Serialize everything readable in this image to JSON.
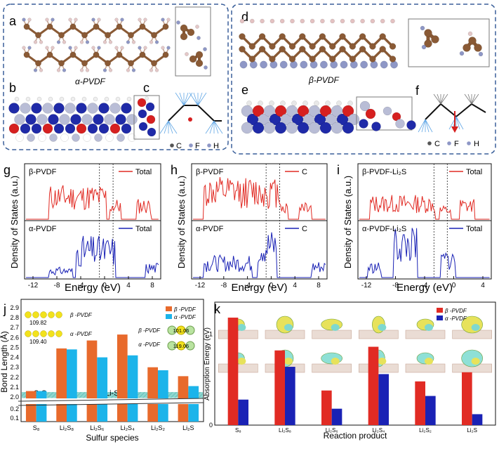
{
  "panels": {
    "a": "a",
    "b": "b",
    "c": "c",
    "d": "d",
    "e": "e",
    "f": "f",
    "g": "g",
    "h": "h",
    "i": "i",
    "j": "j",
    "k": "k"
  },
  "structures": {
    "alpha_label": "α-PVDF",
    "beta_label": "β-PVDF",
    "legend_c": "C",
    "legend_f": "F",
    "legend_h": "H"
  },
  "colors": {
    "carbon": "#8a5a35",
    "fluorine": "#8e97c6",
    "hydrogen": "#e4c8c8",
    "red_atom": "#d62020",
    "blue_atom": "#1f2aa8",
    "grey_atom": "#b9bdd6",
    "beta": "#e12b24",
    "alpha": "#1a22b5",
    "cyan": "#1cb4ea",
    "dashed_box": "#3a5f9a"
  },
  "dos": [
    {
      "panel": "g",
      "top_label": "β-PVDF",
      "top_legend": "Total",
      "bottom_label": "α-PVDF",
      "bottom_legend": "Total",
      "xlabel": "Energy (eV)",
      "ylabel": "Density of States (a.u.)",
      "xticks": [
        "-12",
        "-8",
        "-4",
        "0",
        "4",
        "8"
      ]
    },
    {
      "panel": "h",
      "top_label": "β-PVDF",
      "top_legend": "C",
      "bottom_label": "α-PVDF",
      "bottom_legend": "C",
      "xlabel": "Energy (eV)",
      "ylabel": "Density of States (a.u.)",
      "xticks": [
        "-12",
        "-8",
        "-4",
        "0",
        "4",
        "8"
      ]
    },
    {
      "panel": "i",
      "top_label": "β-PVDF-Li₂S",
      "top_legend": "Total",
      "bottom_label": "α-PVDF-Li₂S",
      "bottom_legend": "Total",
      "xlabel": "Energy (eV)",
      "ylabel": "Density of States (a.u.)",
      "xticks": [
        "-12",
        "-8",
        "-4",
        "0",
        "4"
      ]
    }
  ],
  "chart_data": [
    {
      "type": "bar",
      "panel": "j",
      "categories": [
        "S₈",
        "Li₂S₈",
        "Li₂S₆",
        "Li₂S₄",
        "Li₂S₂",
        "Li₂S"
      ],
      "xlabel": "Sulfur species",
      "ylabel": "Bond Length (Å)",
      "yticks": [
        "0.1",
        "0.2",
        "2.0",
        "2.1",
        "2.2",
        "2.3",
        "2.4",
        "2.5",
        "2.6",
        "2.7",
        "2.8",
        "2.9"
      ],
      "series": [
        {
          "name": "β -PVDF",
          "values": [
            2.06,
            2.49,
            2.57,
            2.63,
            2.3,
            2.21
          ]
        },
        {
          "name": "α -PVDF",
          "values": [
            2.06,
            2.48,
            2.4,
            2.42,
            2.27,
            2.11
          ]
        }
      ],
      "annotations": {
        "band_ss": "S-S",
        "band_lis": "Li-S",
        "beta_angle": "109.82",
        "alpha_angle": "109.40",
        "inset_beta_label": "β -PVDF",
        "inset_alpha_label": "α -PVDF",
        "beta_li_angle": "101.06",
        "alpha_li_angle": "119.06"
      }
    },
    {
      "type": "bar",
      "panel": "k",
      "categories": [
        "S₈",
        "Li₂S₈",
        "Li₂S₆",
        "Li₂S₄",
        "Li₂S₂",
        "Li₂S"
      ],
      "xlabel": "Reaction product",
      "ylabel": "Absorption Energy (eV)",
      "yticks": [
        "0",
        "1"
      ],
      "series": [
        {
          "name": "β -PVDF",
          "values": [
            1.18,
            0.82,
            0.38,
            0.86,
            0.48,
            0.58
          ]
        },
        {
          "name": "α -PVDF",
          "values": [
            0.28,
            0.64,
            0.18,
            0.56,
            0.32,
            0.12
          ]
        }
      ]
    }
  ]
}
